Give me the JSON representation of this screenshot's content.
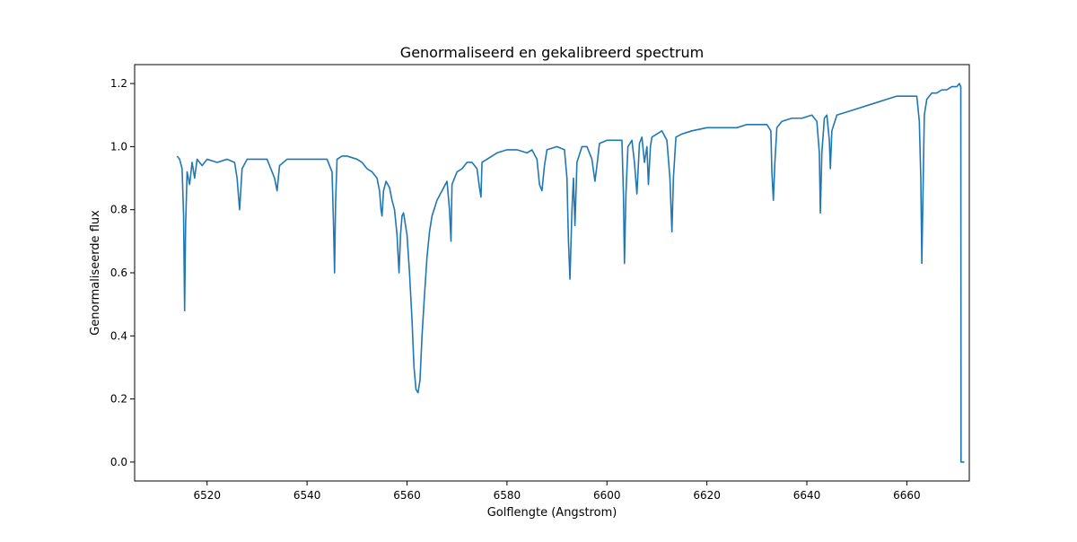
{
  "chart_data": {
    "type": "line",
    "title": "Genormaliseerd en gekalibreerd spectrum",
    "xlabel": "Golflengte (Angstrom)",
    "ylabel": "Genormaliseerde flux",
    "xlim": [
      6505.5,
      6672.5
    ],
    "ylim": [
      -0.06,
      1.26
    ],
    "xticks": [
      6520,
      6540,
      6560,
      6580,
      6600,
      6620,
      6640,
      6660
    ],
    "yticks": [
      0.0,
      0.2,
      0.4,
      0.6,
      0.8,
      1.0,
      1.2
    ],
    "xtick_labels": [
      "6520",
      "6540",
      "6560",
      "6580",
      "6600",
      "6620",
      "6640",
      "6660"
    ],
    "ytick_labels": [
      "0.0",
      "0.2",
      "0.4",
      "0.6",
      "0.8",
      "1.0",
      "1.2"
    ],
    "grid": false,
    "line_color": "#1f77b4",
    "series": [
      {
        "x": [
          6514.0,
          6514.5,
          6515.0,
          6515.3,
          6515.5,
          6515.7,
          6516.0,
          6516.5,
          6517.0,
          6517.5,
          6518.0,
          6519.0,
          6520.0,
          6522.0,
          6524.0,
          6525.5,
          6526.0,
          6526.5,
          6527.0,
          6528.0,
          6530.0,
          6532.0,
          6533.5,
          6534.0,
          6534.5,
          6536.0,
          6538.0,
          6540.0,
          6542.0,
          6544.0,
          6545.0,
          6545.3,
          6545.5,
          6545.7,
          6546.0,
          6547.0,
          6548.0,
          6550.0,
          6551.0,
          6552.0,
          6553.0,
          6554.0,
          6554.5,
          6554.8,
          6555.0,
          6555.3,
          6555.8,
          6556.5,
          6557.0,
          6557.5,
          6558.0,
          6558.4,
          6558.7,
          6559.0,
          6559.3,
          6559.6,
          6560.0,
          6560.5,
          6561.0,
          6561.4,
          6561.8,
          6562.2,
          6562.6,
          6563.0,
          6563.5,
          6564.0,
          6564.5,
          6565.0,
          6566.0,
          6567.0,
          6568.0,
          6568.5,
          6568.8,
          6569.0,
          6569.5,
          6570.0,
          6571.0,
          6572.0,
          6573.0,
          6574.0,
          6574.5,
          6574.8,
          6575.0,
          6576.0,
          6578.0,
          6580.0,
          6582.0,
          6584.0,
          6585.0,
          6586.0,
          6586.5,
          6587.0,
          6587.5,
          6588.0,
          6590.0,
          6591.5,
          6592.0,
          6592.3,
          6592.6,
          6593.0,
          6593.3,
          6593.6,
          6594.0,
          6595.0,
          6596.0,
          6597.0,
          6597.6,
          6598.0,
          6598.5,
          6600.0,
          6602.0,
          6603.0,
          6603.3,
          6603.5,
          6603.8,
          6604.2,
          6605.0,
          6605.5,
          6606.0,
          6606.5,
          6607.0,
          6607.5,
          6608.0,
          6608.3,
          6608.7,
          6609.0,
          6610.0,
          6611.0,
          6612.0,
          6612.6,
          6613.0,
          6613.3,
          6613.8,
          6615.0,
          6617.0,
          6620.0,
          6622.0,
          6624.0,
          6626.0,
          6628.0,
          6630.0,
          6632.0,
          6632.8,
          6633.0,
          6633.3,
          6633.6,
          6634.0,
          6635.0,
          6637.0,
          6639.0,
          6641.0,
          6642.0,
          6642.5,
          6642.7,
          6643.0,
          6643.5,
          6644.0,
          6644.5,
          6644.7,
          6645.0,
          6646.0,
          6648.0,
          6650.0,
          6652.0,
          6654.0,
          6656.0,
          6658.0,
          6660.0,
          6662.0,
          6662.5,
          6662.8,
          6663.0,
          6663.5,
          6664.0,
          6665.0,
          6666.0,
          6667.0,
          6668.0,
          6669.0,
          6670.0,
          6670.5,
          6670.8,
          6670.85,
          6671.2,
          6671.5
        ],
        "y": [
          0.97,
          0.96,
          0.93,
          0.78,
          0.48,
          0.75,
          0.92,
          0.88,
          0.95,
          0.9,
          0.96,
          0.94,
          0.96,
          0.95,
          0.96,
          0.95,
          0.9,
          0.8,
          0.93,
          0.96,
          0.96,
          0.96,
          0.9,
          0.86,
          0.94,
          0.96,
          0.96,
          0.96,
          0.96,
          0.96,
          0.92,
          0.75,
          0.6,
          0.82,
          0.96,
          0.97,
          0.97,
          0.96,
          0.95,
          0.93,
          0.92,
          0.9,
          0.86,
          0.8,
          0.78,
          0.86,
          0.89,
          0.87,
          0.83,
          0.8,
          0.72,
          0.6,
          0.72,
          0.78,
          0.79,
          0.76,
          0.72,
          0.6,
          0.45,
          0.3,
          0.23,
          0.22,
          0.26,
          0.4,
          0.53,
          0.65,
          0.73,
          0.78,
          0.83,
          0.86,
          0.89,
          0.8,
          0.7,
          0.88,
          0.9,
          0.92,
          0.93,
          0.95,
          0.95,
          0.93,
          0.87,
          0.84,
          0.95,
          0.96,
          0.98,
          0.99,
          0.99,
          0.98,
          0.99,
          0.96,
          0.88,
          0.86,
          0.94,
          0.99,
          1.0,
          0.99,
          0.9,
          0.7,
          0.58,
          0.8,
          0.9,
          0.75,
          0.95,
          1.0,
          1.0,
          0.96,
          0.89,
          0.94,
          1.01,
          1.02,
          1.02,
          1.02,
          0.85,
          0.63,
          0.85,
          1.0,
          1.02,
          0.95,
          0.85,
          1.01,
          1.03,
          0.95,
          1.0,
          0.88,
          1.0,
          1.03,
          1.04,
          1.05,
          1.02,
          0.9,
          0.73,
          0.9,
          1.03,
          1.04,
          1.05,
          1.06,
          1.06,
          1.06,
          1.06,
          1.07,
          1.07,
          1.07,
          1.05,
          0.92,
          0.83,
          0.95,
          1.06,
          1.08,
          1.09,
          1.09,
          1.1,
          1.08,
          0.98,
          0.79,
          0.98,
          1.09,
          1.1,
          1.02,
          0.93,
          1.05,
          1.1,
          1.11,
          1.12,
          1.13,
          1.14,
          1.15,
          1.16,
          1.16,
          1.16,
          1.08,
          0.9,
          0.63,
          1.1,
          1.15,
          1.17,
          1.17,
          1.18,
          1.18,
          1.19,
          1.19,
          1.2,
          1.19,
          0.0,
          0.0,
          0.0
        ]
      }
    ]
  }
}
